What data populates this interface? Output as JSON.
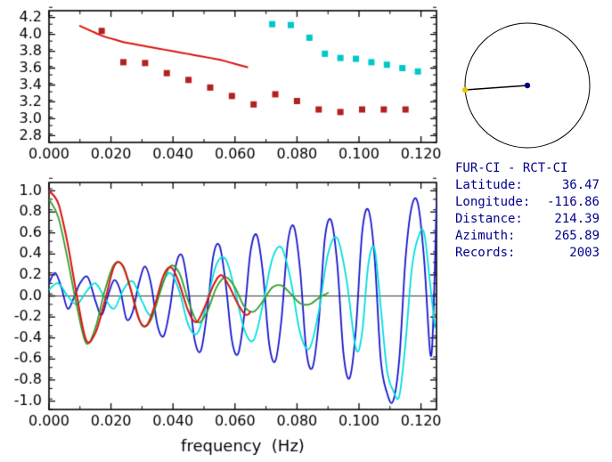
{
  "colors": {
    "background": "#ffffff",
    "axis": "#000000",
    "info_text": "#00008B"
  },
  "info_panel": {
    "title": "FUR-CI - RCT-CI",
    "rows": [
      {
        "label": "Latitude:",
        "value": "36.47"
      },
      {
        "label": "Longitude:",
        "value": "-116.86"
      },
      {
        "label": "Distance:",
        "value": "214.39"
      },
      {
        "label": "Azimuth:",
        "value": "265.89"
      },
      {
        "label": "Records:",
        "value": "2003"
      }
    ]
  },
  "azimuth_indicator": {
    "azimuth_deg": 265.89,
    "circle_color": "#000000",
    "line_color": "#000000",
    "station_dot_color": "#000080",
    "endpoint_dot_color": "#e8c400"
  },
  "chart_data": [
    {
      "id": "dispersion",
      "type": "line",
      "title": "",
      "xlabel": "",
      "ylabel": "",
      "xlim": [
        0,
        0.125
      ],
      "ylim": [
        2.72,
        4.28
      ],
      "grid": false,
      "xticks": [
        0,
        0.02,
        0.04,
        0.06,
        0.08,
        0.1,
        0.12
      ],
      "xtick_labels": [
        "0.000",
        "0.020",
        "0.040",
        "0.060",
        "0.080",
        "0.100",
        "0.120"
      ],
      "xminor": 0.01,
      "yticks": [
        2.8,
        3.0,
        3.2,
        3.4,
        3.6,
        3.8,
        4.0,
        4.2
      ],
      "ytick_labels": [
        "2.8",
        "3.0",
        "3.2",
        "3.4",
        "3.6",
        "3.8",
        "4.0",
        "4.2"
      ],
      "yminor": 0.1,
      "series": [
        {
          "name": "phase-velocity-curve",
          "type": "line",
          "color": "#dd1111",
          "width": 2,
          "points": [
            [
              0.01,
              4.1
            ],
            [
              0.013,
              4.05
            ],
            [
              0.016,
              4.0
            ],
            [
              0.019,
              3.96
            ],
            [
              0.022,
              3.93
            ],
            [
              0.025,
              3.9
            ],
            [
              0.028,
              3.88
            ],
            [
              0.031,
              3.86
            ],
            [
              0.034,
              3.84
            ],
            [
              0.037,
              3.82
            ],
            [
              0.04,
              3.8
            ],
            [
              0.043,
              3.78
            ],
            [
              0.046,
              3.76
            ],
            [
              0.049,
              3.74
            ],
            [
              0.052,
              3.72
            ],
            [
              0.055,
              3.7
            ],
            [
              0.058,
              3.67
            ],
            [
              0.061,
              3.64
            ],
            [
              0.064,
              3.61
            ]
          ]
        },
        {
          "name": "group-velocity-measurements",
          "type": "scatter",
          "marker": "square",
          "color": "#b22020",
          "points": [
            [
              0.017,
              4.04
            ],
            [
              0.024,
              3.67
            ],
            [
              0.031,
              3.66
            ],
            [
              0.038,
              3.54
            ],
            [
              0.045,
              3.46
            ],
            [
              0.052,
              3.37
            ],
            [
              0.059,
              3.27
            ],
            [
              0.066,
              3.17
            ],
            [
              0.073,
              3.29
            ],
            [
              0.08,
              3.21
            ],
            [
              0.087,
              3.11
            ],
            [
              0.094,
              3.08
            ],
            [
              0.101,
              3.11
            ],
            [
              0.108,
              3.11
            ],
            [
              0.115,
              3.11
            ]
          ]
        },
        {
          "name": "phase-velocity-measurements",
          "type": "scatter",
          "marker": "square",
          "color": "#00c8c8",
          "points": [
            [
              0.072,
              4.12
            ],
            [
              0.078,
              4.11
            ],
            [
              0.084,
              3.96
            ],
            [
              0.089,
              3.77
            ],
            [
              0.094,
              3.72
            ],
            [
              0.099,
              3.71
            ],
            [
              0.104,
              3.67
            ],
            [
              0.109,
              3.64
            ],
            [
              0.114,
              3.6
            ],
            [
              0.119,
              3.56
            ]
          ]
        }
      ]
    },
    {
      "id": "waveforms",
      "type": "line",
      "title": "",
      "xlabel": "frequency  (Hz)",
      "ylabel": "",
      "xlim": [
        0,
        0.125
      ],
      "ylim": [
        -1.08,
        1.08
      ],
      "grid": false,
      "zero_line": true,
      "xticks": [
        0,
        0.02,
        0.04,
        0.06,
        0.08,
        0.1,
        0.12
      ],
      "xtick_labels": [
        "0.000",
        "0.020",
        "0.040",
        "0.060",
        "0.080",
        "0.100",
        "0.120"
      ],
      "xminor": 0.01,
      "yticks": [
        -1.0,
        -0.8,
        -0.6,
        -0.4,
        -0.2,
        0.0,
        0.2,
        0.4,
        0.6,
        0.8,
        1.0
      ],
      "ytick_labels": [
        "-1.0",
        "-0.8",
        "-0.6",
        "-0.4",
        "-0.2",
        "0.0",
        "0.2",
        "0.4",
        "0.6",
        "0.8",
        "1.0"
      ],
      "yminor": 0.1,
      "series": [
        {
          "name": "correlation-dark-blue",
          "type": "line",
          "color": "#1818cc",
          "width": 1.8,
          "points": [
            [
              0,
              0.12
            ],
            [
              0.002,
              0.22
            ],
            [
              0.004,
              0.08
            ],
            [
              0.006,
              -0.12
            ],
            [
              0.008,
              -0.02
            ],
            [
              0.01,
              0.12
            ],
            [
              0.0125,
              0.18
            ],
            [
              0.015,
              -0.05
            ],
            [
              0.017,
              -0.18
            ],
            [
              0.019,
              0.0
            ],
            [
              0.021,
              0.15
            ],
            [
              0.023,
              0.05
            ],
            [
              0.025,
              -0.22
            ],
            [
              0.027,
              -0.15
            ],
            [
              0.029,
              0.12
            ],
            [
              0.031,
              0.28
            ],
            [
              0.033,
              0.1
            ],
            [
              0.035,
              -0.28
            ],
            [
              0.037,
              -0.38
            ],
            [
              0.039,
              -0.12
            ],
            [
              0.041,
              0.3
            ],
            [
              0.043,
              0.38
            ],
            [
              0.045,
              0.05
            ],
            [
              0.047,
              -0.42
            ],
            [
              0.049,
              -0.52
            ],
            [
              0.051,
              -0.15
            ],
            [
              0.053,
              0.38
            ],
            [
              0.055,
              0.48
            ],
            [
              0.057,
              0.12
            ],
            [
              0.059,
              -0.42
            ],
            [
              0.061,
              -0.55
            ],
            [
              0.063,
              -0.18
            ],
            [
              0.065,
              0.42
            ],
            [
              0.067,
              0.58
            ],
            [
              0.069,
              0.22
            ],
            [
              0.071,
              -0.45
            ],
            [
              0.073,
              -0.62
            ],
            [
              0.075,
              -0.22
            ],
            [
              0.077,
              0.5
            ],
            [
              0.079,
              0.66
            ],
            [
              0.081,
              0.25
            ],
            [
              0.083,
              -0.52
            ],
            [
              0.085,
              -0.68
            ],
            [
              0.087,
              -0.25
            ],
            [
              0.089,
              0.55
            ],
            [
              0.091,
              0.72
            ],
            [
              0.093,
              0.3
            ],
            [
              0.095,
              -0.55
            ],
            [
              0.097,
              -0.78
            ],
            [
              0.099,
              -0.32
            ],
            [
              0.101,
              0.6
            ],
            [
              0.103,
              0.82
            ],
            [
              0.105,
              0.38
            ],
            [
              0.107,
              -0.6
            ],
            [
              0.109,
              -0.92
            ],
            [
              0.111,
              -1.0
            ],
            [
              0.113,
              -0.6
            ],
            [
              0.115,
              0.35
            ],
            [
              0.117,
              0.85
            ],
            [
              0.119,
              0.88
            ],
            [
              0.121,
              0.35
            ],
            [
              0.123,
              -0.55
            ],
            [
              0.124,
              -0.2
            ],
            [
              0.125,
              0.9
            ]
          ]
        },
        {
          "name": "correlation-cyan",
          "type": "line",
          "color": "#00dede",
          "width": 1.8,
          "points": [
            [
              0,
              0.06
            ],
            [
              0.003,
              0.12
            ],
            [
              0.006,
              0.0
            ],
            [
              0.009,
              -0.08
            ],
            [
              0.012,
              0.04
            ],
            [
              0.015,
              0.12
            ],
            [
              0.018,
              -0.02
            ],
            [
              0.021,
              -0.12
            ],
            [
              0.024,
              0.06
            ],
            [
              0.027,
              0.14
            ],
            [
              0.03,
              -0.05
            ],
            [
              0.033,
              -0.18
            ],
            [
              0.036,
              0.08
            ],
            [
              0.039,
              0.22
            ],
            [
              0.042,
              0.05
            ],
            [
              0.045,
              -0.28
            ],
            [
              0.048,
              -0.35
            ],
            [
              0.051,
              -0.05
            ],
            [
              0.054,
              0.3
            ],
            [
              0.057,
              0.35
            ],
            [
              0.06,
              0.05
            ],
            [
              0.063,
              -0.32
            ],
            [
              0.066,
              -0.42
            ],
            [
              0.069,
              -0.08
            ],
            [
              0.072,
              0.35
            ],
            [
              0.075,
              0.46
            ],
            [
              0.078,
              0.15
            ],
            [
              0.081,
              -0.35
            ],
            [
              0.084,
              -0.5
            ],
            [
              0.087,
              -0.15
            ],
            [
              0.09,
              0.4
            ],
            [
              0.093,
              0.55
            ],
            [
              0.096,
              0.15
            ],
            [
              0.099,
              -0.5
            ],
            [
              0.101,
              -0.35
            ],
            [
              0.103,
              0.3
            ],
            [
              0.105,
              0.45
            ],
            [
              0.107,
              -0.1
            ],
            [
              0.109,
              -0.7
            ],
            [
              0.111,
              -0.9
            ],
            [
              0.113,
              -0.95
            ],
            [
              0.115,
              -0.45
            ],
            [
              0.117,
              0.25
            ],
            [
              0.119,
              0.55
            ],
            [
              0.121,
              0.6
            ],
            [
              0.123,
              0.1
            ],
            [
              0.1245,
              -0.3
            ]
          ]
        },
        {
          "name": "correlation-green",
          "type": "line",
          "color": "#33a02c",
          "width": 1.8,
          "points": [
            [
              0,
              0.92
            ],
            [
              0.003,
              0.75
            ],
            [
              0.006,
              0.35
            ],
            [
              0.009,
              -0.1
            ],
            [
              0.012,
              -0.45
            ],
            [
              0.015,
              -0.3
            ],
            [
              0.018,
              0.05
            ],
            [
              0.021,
              0.3
            ],
            [
              0.024,
              0.28
            ],
            [
              0.027,
              0.0
            ],
            [
              0.03,
              -0.28
            ],
            [
              0.033,
              -0.22
            ],
            [
              0.036,
              0.05
            ],
            [
              0.039,
              0.28
            ],
            [
              0.042,
              0.22
            ],
            [
              0.045,
              -0.05
            ],
            [
              0.048,
              -0.25
            ],
            [
              0.051,
              -0.15
            ],
            [
              0.054,
              0.08
            ],
            [
              0.057,
              0.18
            ],
            [
              0.06,
              0.08
            ],
            [
              0.063,
              -0.1
            ],
            [
              0.066,
              -0.15
            ],
            [
              0.069,
              -0.05
            ],
            [
              0.072,
              0.08
            ],
            [
              0.075,
              0.1
            ],
            [
              0.078,
              0.02
            ],
            [
              0.081,
              -0.07
            ],
            [
              0.084,
              -0.08
            ],
            [
              0.087,
              -0.02
            ],
            [
              0.09,
              0.03
            ]
          ]
        },
        {
          "name": "correlation-red",
          "type": "line",
          "color": "#dd1111",
          "width": 2,
          "points": [
            [
              0,
              1.0
            ],
            [
              0.003,
              0.88
            ],
            [
              0.006,
              0.5
            ],
            [
              0.009,
              0.0
            ],
            [
              0.012,
              -0.42
            ],
            [
              0.015,
              -0.35
            ],
            [
              0.018,
              -0.05
            ],
            [
              0.021,
              0.28
            ],
            [
              0.0235,
              0.3
            ],
            [
              0.026,
              0.1
            ],
            [
              0.029,
              -0.22
            ],
            [
              0.0315,
              -0.28
            ],
            [
              0.034,
              -0.1
            ],
            [
              0.037,
              0.2
            ],
            [
              0.0395,
              0.27
            ],
            [
              0.042,
              0.12
            ],
            [
              0.045,
              -0.15
            ],
            [
              0.0475,
              -0.25
            ],
            [
              0.05,
              -0.12
            ],
            [
              0.053,
              0.1
            ],
            [
              0.0555,
              0.2
            ],
            [
              0.058,
              0.1
            ],
            [
              0.061,
              -0.08
            ],
            [
              0.0635,
              -0.18
            ],
            [
              0.065,
              -0.15
            ]
          ]
        }
      ]
    }
  ]
}
